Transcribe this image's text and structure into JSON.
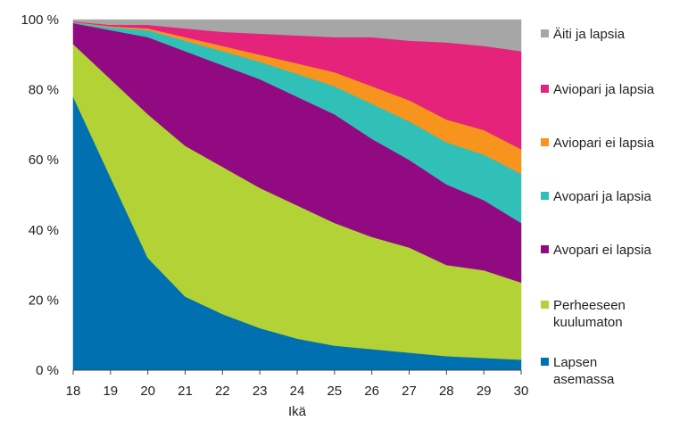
{
  "chart_data": {
    "type": "area",
    "stacked": true,
    "percent": true,
    "x": [
      18,
      19,
      20,
      21,
      22,
      23,
      24,
      25,
      26,
      27,
      28,
      29,
      30
    ],
    "xlabel": "Ikä",
    "ylim": [
      0,
      100
    ],
    "yticks": [
      "0 %",
      "20 %",
      "40 %",
      "60 %",
      "80 %",
      "100 %"
    ],
    "ytick_values": [
      0,
      20,
      40,
      60,
      80,
      100
    ],
    "grid": false,
    "legend_position": "right",
    "series": [
      {
        "name": "Lapsen asemassa",
        "label_lines": [
          "Lapsen",
          "asemassa"
        ],
        "color": "#0070b0",
        "values": [
          78,
          55,
          32,
          21,
          16,
          12,
          9,
          7,
          6,
          5,
          4,
          3.5,
          3
        ]
      },
      {
        "name": "Perheeseen kuulumaton",
        "label_lines": [
          "Perheeseen",
          "kuulumaton"
        ],
        "color": "#b2d235",
        "values": [
          15,
          28,
          41,
          43,
          42,
          40,
          38,
          35,
          32,
          30,
          26,
          25,
          22
        ]
      },
      {
        "name": "Avopari ei lapsia",
        "label_lines": [
          "Avopari ei lapsia"
        ],
        "color": "#910a82",
        "values": [
          6,
          14,
          22,
          27,
          29,
          31,
          31,
          31,
          28,
          25,
          23,
          20,
          17
        ]
      },
      {
        "name": "Avopari ja lapsia",
        "label_lines": [
          "Avopari ja lapsia"
        ],
        "color": "#30c0b8",
        "values": [
          0.2,
          0.8,
          2,
          3,
          4,
          5,
          6.5,
          8,
          10,
          11,
          12,
          13,
          14
        ]
      },
      {
        "name": "Aviopari ei lapsia",
        "label_lines": [
          "Aviopari ei lapsia"
        ],
        "color": "#f7941d",
        "values": [
          0.1,
          0.3,
          0.5,
          1,
          1.5,
          2,
          3,
          4,
          5,
          6,
          6.5,
          7,
          7
        ]
      },
      {
        "name": "Aviopari ja lapsia",
        "label_lines": [
          "Aviopari ja lapsia"
        ],
        "color": "#e6237a",
        "values": [
          0.2,
          0.4,
          1,
          2.5,
          4,
          6,
          8,
          10,
          14,
          17,
          22,
          24,
          28
        ]
      },
      {
        "name": "Äiti ja lapsia",
        "label_lines": [
          "Äiti ja lapsia"
        ],
        "color": "#a6a6a6",
        "values": [
          0.5,
          1.5,
          1.5,
          2.5,
          3.5,
          4,
          4.5,
          5,
          5,
          6,
          6.5,
          7.5,
          9
        ]
      }
    ]
  }
}
